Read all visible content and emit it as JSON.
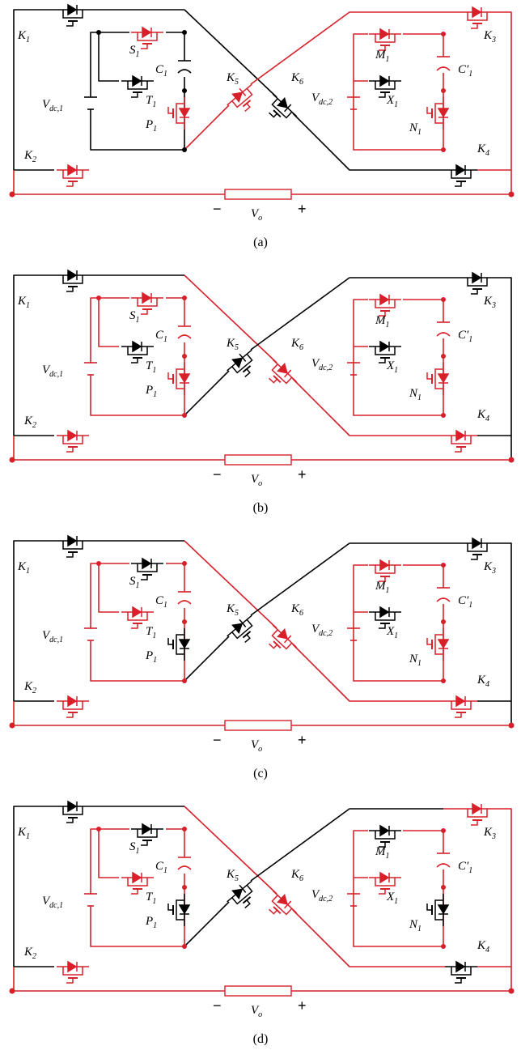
{
  "colors": {
    "active": "#d8202a",
    "inactive": "#000000"
  },
  "panels": [
    {
      "caption": "(a)",
      "state": {
        "outer_left": "inactive",
        "top_bar_left": "inactive",
        "left_inner": "inactive",
        "S1": "active",
        "T1": "inactive",
        "P1": "active",
        "K1": "inactive",
        "K2": "active",
        "K5": "active",
        "K6": "inactive",
        "outer_right": "active",
        "right_inner": "active",
        "M1": "active",
        "X1": "inactive",
        "N1": "active",
        "K3": "active",
        "K4": "inactive",
        "bottom_rail": "active"
      }
    },
    {
      "caption": "(b)",
      "state": {
        "outer_left": "inactive",
        "top_bar_left": "inactive",
        "left_inner": "active",
        "S1": "active",
        "T1": "inactive",
        "P1": "active",
        "K1": "inactive",
        "K2": "active",
        "K5": "inactive",
        "K6": "active",
        "outer_right": "inactive",
        "right_inner": "active",
        "M1": "active",
        "X1": "inactive",
        "N1": "active",
        "K3": "inactive",
        "K4": "active",
        "bottom_rail": "active"
      }
    },
    {
      "caption": "(c)",
      "state": {
        "outer_left": "inactive",
        "top_bar_left": "inactive",
        "left_inner": "active",
        "S1": "inactive",
        "T1": "active",
        "P1": "inactive",
        "K1": "inactive",
        "K2": "active",
        "K5": "inactive",
        "K6": "active",
        "outer_right": "inactive",
        "right_inner": "active",
        "M1": "active",
        "X1": "inactive",
        "N1": "active",
        "K3": "inactive",
        "K4": "active",
        "bottom_rail": "active"
      }
    },
    {
      "caption": "(d)",
      "state": {
        "outer_left": "inactive",
        "top_bar_left": "inactive",
        "left_inner": "active",
        "S1": "inactive",
        "T1": "active",
        "P1": "inactive",
        "K1": "inactive",
        "K2": "active",
        "K5": "inactive",
        "K6": "active",
        "outer_right": "active",
        "right_inner": "active",
        "M1": "inactive",
        "X1": "active",
        "N1": "inactive",
        "K3": "active",
        "K4": "inactive",
        "bottom_rail": "active"
      }
    }
  ],
  "labels": {
    "K1": "K",
    "K1_sub": "1",
    "K2": "K",
    "K2_sub": "2",
    "K3": "K",
    "K3_sub": "3",
    "K4": "K",
    "K4_sub": "4",
    "K5": "K",
    "K5_sub": "5",
    "K6": "K",
    "K6_sub": "6",
    "S1": "S",
    "S1_sub": "1",
    "T1": "T",
    "T1_sub": "1",
    "P1": "P",
    "P1_sub": "1",
    "C1": "C",
    "C1_sub": "1",
    "M1": "M",
    "M1_sub": "1",
    "X1": "X",
    "X1_sub": "1",
    "N1": "N",
    "N1_sub": "1",
    "C1p": "C′",
    "C1p_sub": "1",
    "Vdc1": "V",
    "Vdc1_sub": "dc,1",
    "Vdc2": "V",
    "Vdc2_sub": "dc,2",
    "Vo": "V",
    "Vo_sub": "o",
    "minus": "−",
    "plus": "+"
  }
}
